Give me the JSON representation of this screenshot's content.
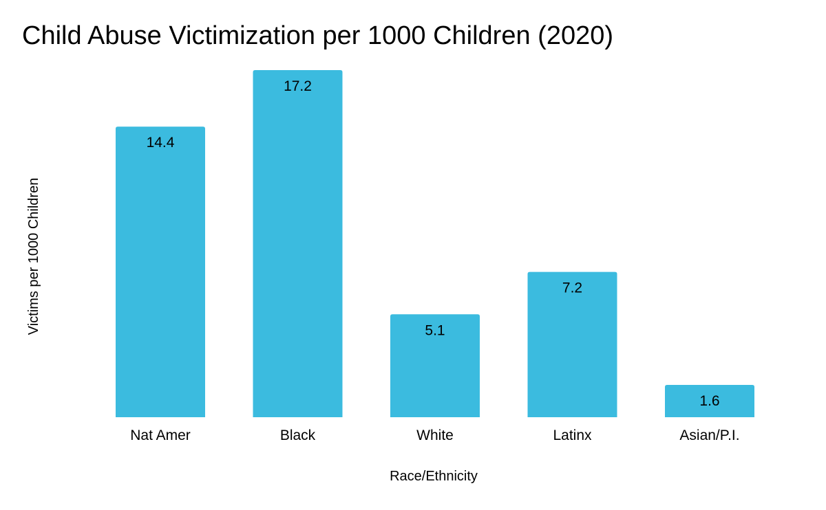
{
  "chart_data": {
    "type": "bar",
    "title": "Child Abuse Victimization per 1000 Children (2020)",
    "xlabel": "Race/Ethnicity",
    "ylabel": "Victims  per 1000 Children",
    "categories": [
      "Nat Amer",
      "Black",
      "White",
      "Latinx",
      "Asian/P.I."
    ],
    "values": [
      14.4,
      17.2,
      5.1,
      7.2,
      1.6
    ],
    "data_labels": [
      "14.4",
      "17.2",
      "5.1",
      "7.2",
      "1.6"
    ],
    "ylim": [
      0,
      17.2
    ],
    "grid": false,
    "legend": "none",
    "bar_color": "#3bbbdf"
  }
}
